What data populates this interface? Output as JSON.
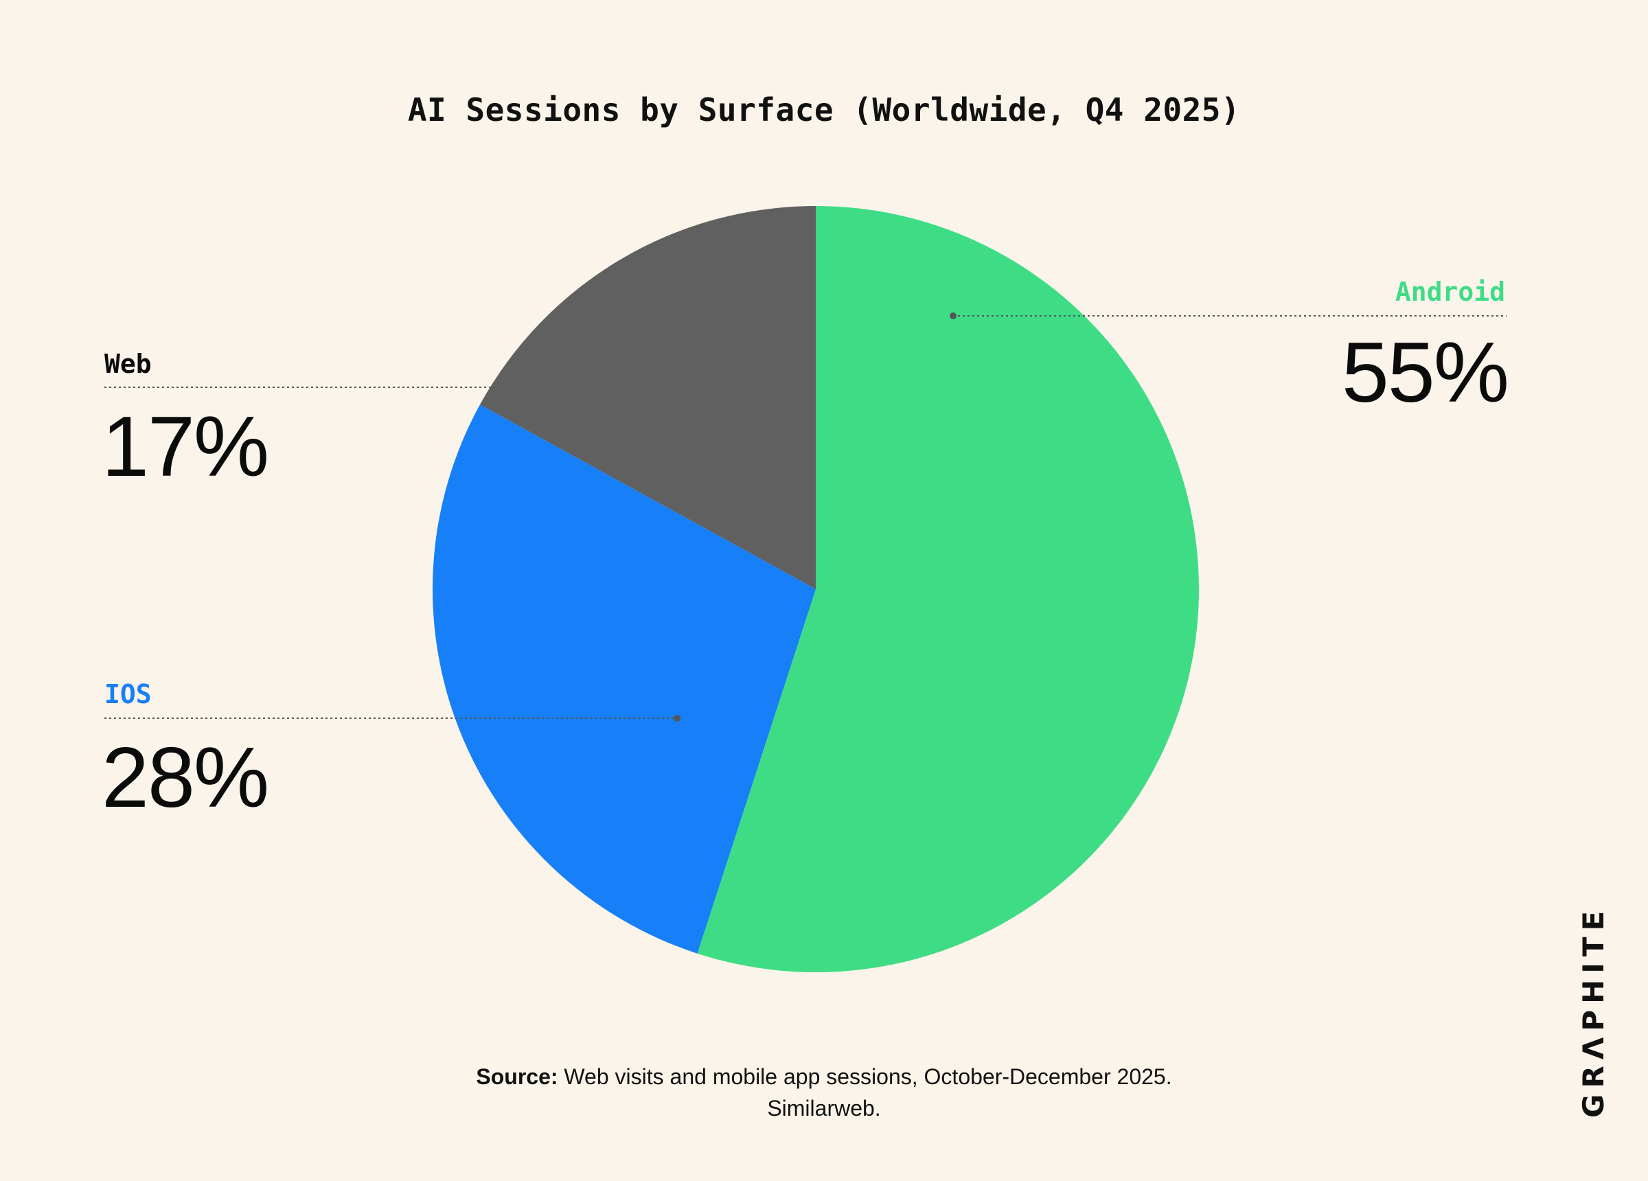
{
  "chart_data": {
    "type": "pie",
    "title": "AI Sessions by Surface (Worldwide, Q4 2025)",
    "slices": [
      {
        "name": "Android",
        "value": 55,
        "label": "55%",
        "color": "#3fdc86"
      },
      {
        "name": "IOS",
        "value": 28,
        "label": "28%",
        "color": "#177ff7"
      },
      {
        "name": "Web",
        "value": 17,
        "label": "17%",
        "color": "#606060"
      }
    ],
    "start_angle_deg": 0,
    "direction": "clockwise"
  },
  "source": {
    "prefix": "Source:",
    "text": "Web visits and mobile app sessions, October-December 2025.",
    "line2": "Similarweb."
  },
  "brand": {
    "logo_text": "GRΛPHITE"
  },
  "colors": {
    "background": "#faf4ea",
    "leader_line": "#555555"
  }
}
